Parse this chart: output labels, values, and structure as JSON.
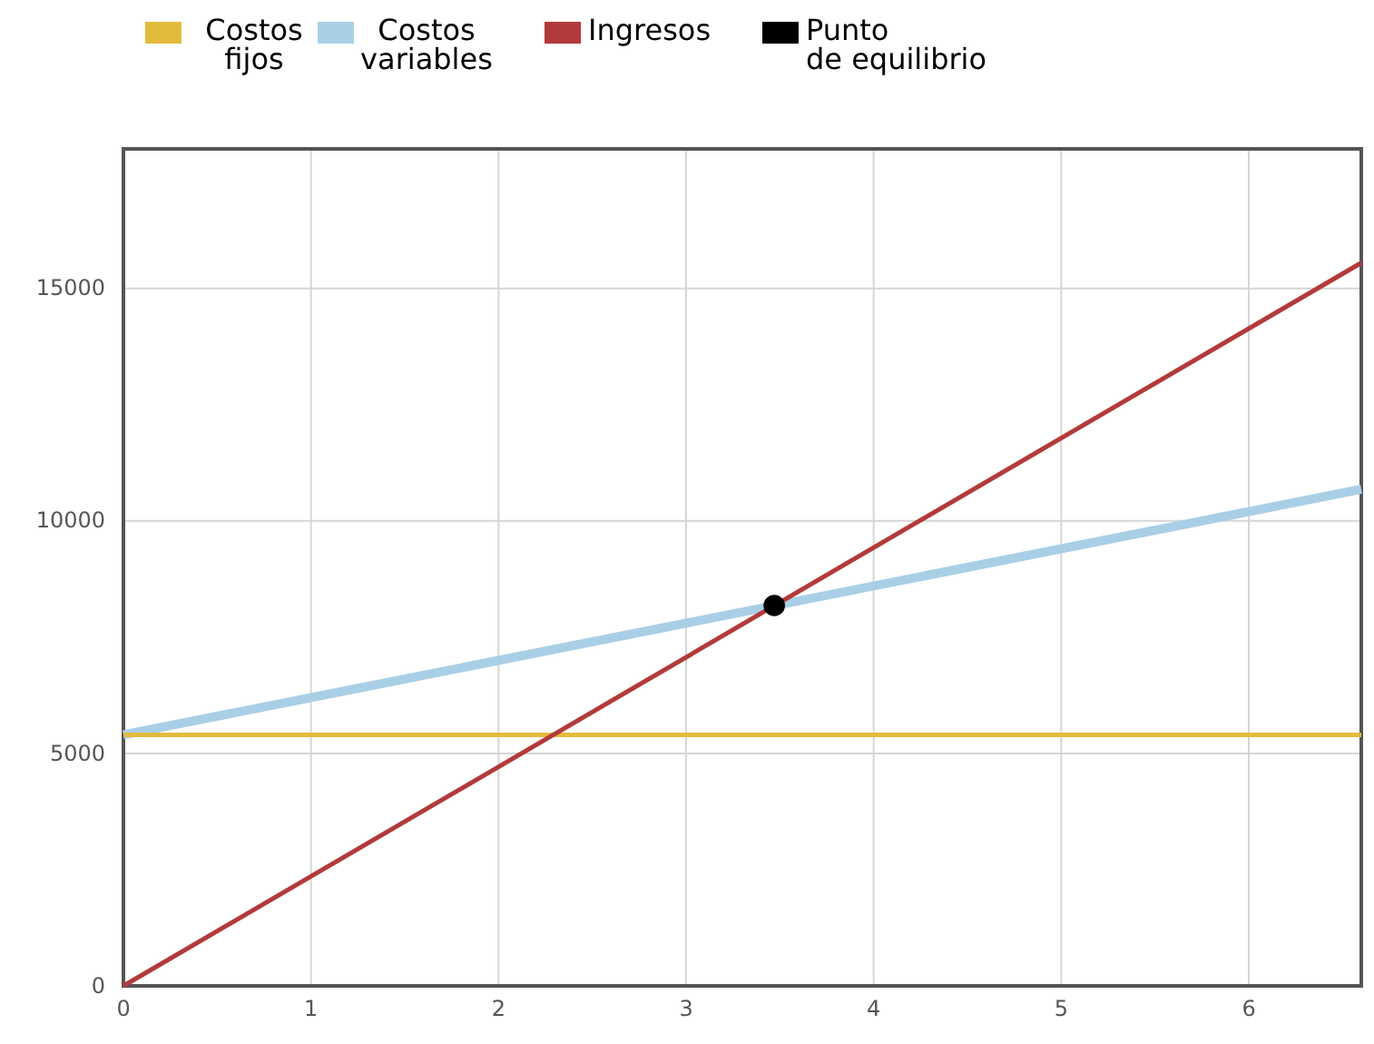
{
  "chart_data": {
    "type": "line",
    "xlim": [
      0,
      6.6
    ],
    "xticks": [
      0,
      1,
      2,
      3,
      4,
      5,
      6
    ],
    "ylim": [
      0,
      18000
    ],
    "yticks": [
      0,
      5000,
      10000,
      15000
    ],
    "grid": true,
    "legend": "top",
    "series": [
      {
        "name": "Costos fijos",
        "color": "#e3bb3c",
        "x": [
          0,
          6.6
        ],
        "values": [
          5400,
          5400
        ]
      },
      {
        "name": "Costos variables",
        "color": "#a9cfe6",
        "x": [
          0,
          6.6
        ],
        "values": [
          5400,
          10680
        ]
      },
      {
        "name": "Ingresos",
        "color": "#b33a3a",
        "x": [
          0,
          6.6
        ],
        "values": [
          0,
          15550
        ]
      },
      {
        "name": "Punto de equilibrio",
        "type": "scatter",
        "marker": "circle",
        "color": "#000000",
        "x": [
          3.47
        ],
        "values": [
          8180
        ]
      }
    ]
  }
}
